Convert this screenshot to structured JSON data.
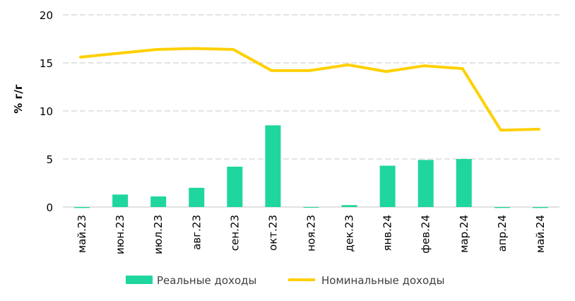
{
  "chart_data": {
    "type": "bar",
    "categories": [
      "май.23",
      "июн.23",
      "июл.23",
      "авг.23",
      "сен.23",
      "окт.23",
      "ноя.23",
      "дек.23",
      "янв.24",
      "фев.24",
      "мар.24",
      "апр.24",
      "май.24"
    ],
    "ylabel": "% г/г",
    "xlabel": "",
    "ylim": [
      0,
      20
    ],
    "yticks": [
      0,
      5,
      10,
      15,
      20
    ],
    "grid": true,
    "legend_position": "bottom",
    "series": [
      {
        "name": "Реальные доходы",
        "type": "bar",
        "color": "#1ed69e",
        "values": [
          -0.1,
          1.3,
          1.1,
          2.0,
          4.2,
          8.5,
          0.0,
          0.2,
          4.3,
          4.9,
          5.0,
          -0.1,
          -0.1
        ]
      },
      {
        "name": "Номинальные доходы",
        "type": "line",
        "color": "#ffd000",
        "values": [
          15.6,
          16.0,
          16.4,
          16.5,
          16.4,
          14.2,
          14.2,
          14.8,
          14.1,
          14.7,
          14.4,
          8.0,
          8.1
        ]
      }
    ]
  }
}
